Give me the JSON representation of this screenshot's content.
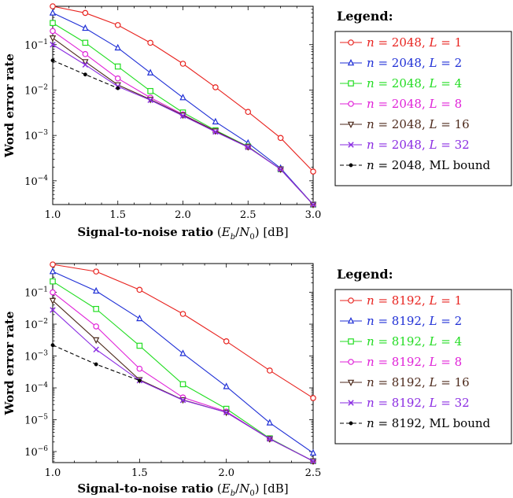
{
  "chart_data": [
    {
      "type": "line",
      "xlabel": "Signal-to-noise ratio (E_b/N_0) [dB]",
      "xlabel_parts": {
        "prefix": "Signal-to-noise ratio",
        "sym_E": "E",
        "sym_b": "b",
        "slash": "/",
        "sym_N": "N",
        "sym_0": "0",
        "unit": "[dB]"
      },
      "ylabel": "Word error rate",
      "xlim": [
        1.0,
        3.0
      ],
      "ylim": [
        3e-05,
        0.7
      ],
      "y_scale": "log",
      "grid": false,
      "legend_position": "right",
      "legend_title": "Legend:",
      "x_ticks": [
        {
          "v": 1.0,
          "label": "1.0"
        },
        {
          "v": 1.5,
          "label": "1.5"
        },
        {
          "v": 2.0,
          "label": "2.0"
        },
        {
          "v": 2.5,
          "label": "2.5"
        },
        {
          "v": 3.0,
          "label": "3.0"
        }
      ],
      "y_ticks": [
        {
          "v": 0.0001,
          "b": "10",
          "e": "−4"
        },
        {
          "v": 0.001,
          "b": "10",
          "e": "−3"
        },
        {
          "v": 0.01,
          "b": "10",
          "e": "−2"
        },
        {
          "v": 0.1,
          "b": "10",
          "e": "−1"
        }
      ],
      "x": [
        1.0,
        1.25,
        1.5,
        1.75,
        2.0,
        2.25,
        2.5,
        2.75,
        3.0
      ],
      "series": [
        {
          "name": "n = 2048, L = 1",
          "n": "2048",
          "L": "1",
          "color": "#e8231f",
          "marker": "circle",
          "dashed": false,
          "values": [
            0.7,
            0.5,
            0.27,
            0.11,
            0.038,
            0.0115,
            0.0033,
            0.00088,
            0.00016
          ]
        },
        {
          "name": "n = 2048, L = 2",
          "n": "2048",
          "L": "2",
          "color": "#1f2fd6",
          "marker": "triangle-up",
          "dashed": false,
          "values": [
            0.5,
            0.23,
            0.085,
            0.024,
            0.0068,
            0.002,
            0.00068,
            0.00019,
            3e-05
          ]
        },
        {
          "name": "n = 2048, L = 4",
          "n": "2048",
          "L": "4",
          "color": "#22dd22",
          "marker": "square",
          "dashed": false,
          "values": [
            0.3,
            0.11,
            0.033,
            0.0095,
            0.0032,
            0.0013,
            0.00057,
            0.00018,
            3e-05
          ]
        },
        {
          "name": "n = 2048, L = 8",
          "n": "2048",
          "L": "8",
          "color": "#e020d8",
          "marker": "circle",
          "dashed": false,
          "values": [
            0.2,
            0.062,
            0.018,
            0.0068,
            0.0029,
            0.00125,
            0.00056,
            0.00018,
            3e-05
          ]
        },
        {
          "name": "n = 2048, L = 16",
          "n": "2048",
          "L": "16",
          "color": "#4d2a1c",
          "marker": "triangle-down",
          "dashed": false,
          "values": [
            0.14,
            0.042,
            0.013,
            0.0062,
            0.0028,
            0.00125,
            0.00056,
            0.00018,
            3e-05
          ]
        },
        {
          "name": "n = 2048, L = 32",
          "n": "2048",
          "L": "32",
          "color": "#8a2be2",
          "marker": "x",
          "dashed": false,
          "values": [
            0.1,
            0.036,
            0.012,
            0.006,
            0.0027,
            0.0012,
            0.00055,
            0.00018,
            3e-05
          ]
        },
        {
          "name": "n = 2048, ML bound",
          "n": "2048",
          "L": "",
          "color": "#000000",
          "marker": "dot",
          "dashed": true,
          "values": [
            0.045,
            0.022,
            0.011,
            null,
            null,
            null,
            null,
            null,
            null
          ]
        }
      ]
    },
    {
      "type": "line",
      "xlabel": "Signal-to-noise ratio (E_b/N_0) [dB]",
      "xlabel_parts": {
        "prefix": "Signal-to-noise ratio",
        "sym_E": "E",
        "sym_b": "b",
        "slash": "/",
        "sym_N": "N",
        "sym_0": "0",
        "unit": "[dB]"
      },
      "ylabel": "Word error rate",
      "xlim": [
        1.0,
        2.5
      ],
      "ylim": [
        4.5e-07,
        0.8
      ],
      "y_scale": "log",
      "grid": false,
      "legend_position": "right",
      "legend_title": "Legend:",
      "x_ticks": [
        {
          "v": 1.0,
          "label": "1.0"
        },
        {
          "v": 1.5,
          "label": "1.5"
        },
        {
          "v": 2.0,
          "label": "2.0"
        },
        {
          "v": 2.5,
          "label": "2.5"
        }
      ],
      "y_ticks": [
        {
          "v": 1e-06,
          "b": "10",
          "e": "−6"
        },
        {
          "v": 1e-05,
          "b": "10",
          "e": "−5"
        },
        {
          "v": 0.0001,
          "b": "10",
          "e": "−4"
        },
        {
          "v": 0.001,
          "b": "10",
          "e": "−3"
        },
        {
          "v": 0.01,
          "b": "10",
          "e": "−2"
        },
        {
          "v": 0.1,
          "b": "10",
          "e": "−1"
        }
      ],
      "x": [
        1.0,
        1.25,
        1.5,
        1.75,
        2.0,
        2.25,
        2.5
      ],
      "series": [
        {
          "name": "n = 8192, L = 1",
          "n": "8192",
          "L": "1",
          "color": "#e8231f",
          "marker": "circle",
          "dashed": false,
          "values": [
            0.75,
            0.45,
            0.12,
            0.021,
            0.0029,
            0.00035,
            4.8e-05
          ]
        },
        {
          "name": "n = 8192, L = 2",
          "n": "8192",
          "L": "2",
          "color": "#1f2fd6",
          "marker": "triangle-up",
          "dashed": false,
          "values": [
            0.45,
            0.11,
            0.015,
            0.0012,
            0.00011,
            8e-06,
            9e-07
          ]
        },
        {
          "name": "n = 8192, L = 4",
          "n": "8192",
          "L": "4",
          "color": "#22dd22",
          "marker": "square",
          "dashed": false,
          "values": [
            0.22,
            0.03,
            0.0021,
            0.00013,
            2.2e-05,
            2.6e-06,
            5e-07
          ]
        },
        {
          "name": "n = 8192, L = 8",
          "n": "8192",
          "L": "8",
          "color": "#e020d8",
          "marker": "circle",
          "dashed": false,
          "values": [
            0.1,
            0.0085,
            0.0004,
            5e-05,
            1.8e-05,
            2.5e-06,
            5e-07
          ]
        },
        {
          "name": "n = 8192, L = 16",
          "n": "8192",
          "L": "16",
          "color": "#4d2a1c",
          "marker": "triangle-down",
          "dashed": false,
          "values": [
            0.055,
            0.0032,
            0.00018,
            4.2e-05,
            1.7e-05,
            2.5e-06,
            5e-07
          ]
        },
        {
          "name": "n = 8192, L = 32",
          "n": "8192",
          "L": "32",
          "color": "#8a2be2",
          "marker": "x",
          "dashed": false,
          "values": [
            0.028,
            0.0016,
            0.00017,
            4.1e-05,
            1.7e-05,
            2.5e-06,
            5e-07
          ]
        },
        {
          "name": "n = 8192, ML bound",
          "n": "8192",
          "L": "",
          "color": "#000000",
          "marker": "dot",
          "dashed": true,
          "values": [
            0.0022,
            0.00055,
            0.00017,
            null,
            null,
            null,
            null
          ]
        }
      ]
    }
  ]
}
